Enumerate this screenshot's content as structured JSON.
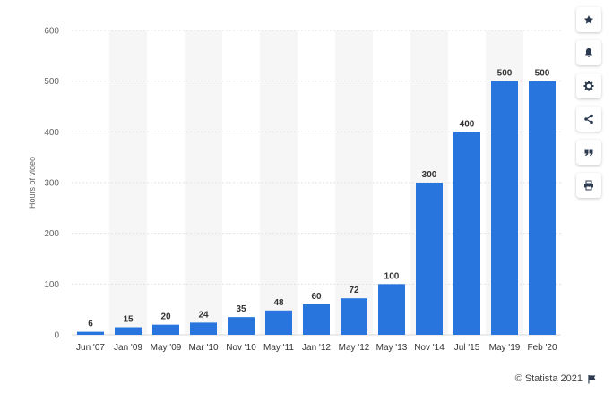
{
  "chart_data": {
    "type": "bar",
    "categories": [
      "Jun '07",
      "Jan '09",
      "May '09",
      "Mar '10",
      "Nov '10",
      "May '11",
      "Jan '12",
      "May '12",
      "May '13",
      "Nov '14",
      "Jul '15",
      "May '19",
      "Feb '20"
    ],
    "values": [
      6,
      15,
      20,
      24,
      35,
      48,
      60,
      72,
      100,
      300,
      400,
      500,
      500
    ],
    "ylabel": "Hours of video",
    "xlabel": "",
    "ylim": [
      0,
      600
    ],
    "yticks": [
      0,
      100,
      200,
      300,
      400,
      500,
      600
    ],
    "grid": true,
    "bar_color": "#2876dd",
    "data_labels": true
  },
  "toolbar": {
    "buttons": [
      {
        "icon": "star-icon",
        "name": "favorite-button"
      },
      {
        "icon": "bell-icon",
        "name": "notification-button"
      },
      {
        "icon": "gear-icon",
        "name": "settings-button"
      },
      {
        "icon": "share-icon",
        "name": "share-button"
      },
      {
        "icon": "quote-icon",
        "name": "cite-button"
      },
      {
        "icon": "print-icon",
        "name": "print-button"
      }
    ]
  },
  "credit": {
    "text": "© Statista 2021",
    "icon": "flag-icon"
  }
}
